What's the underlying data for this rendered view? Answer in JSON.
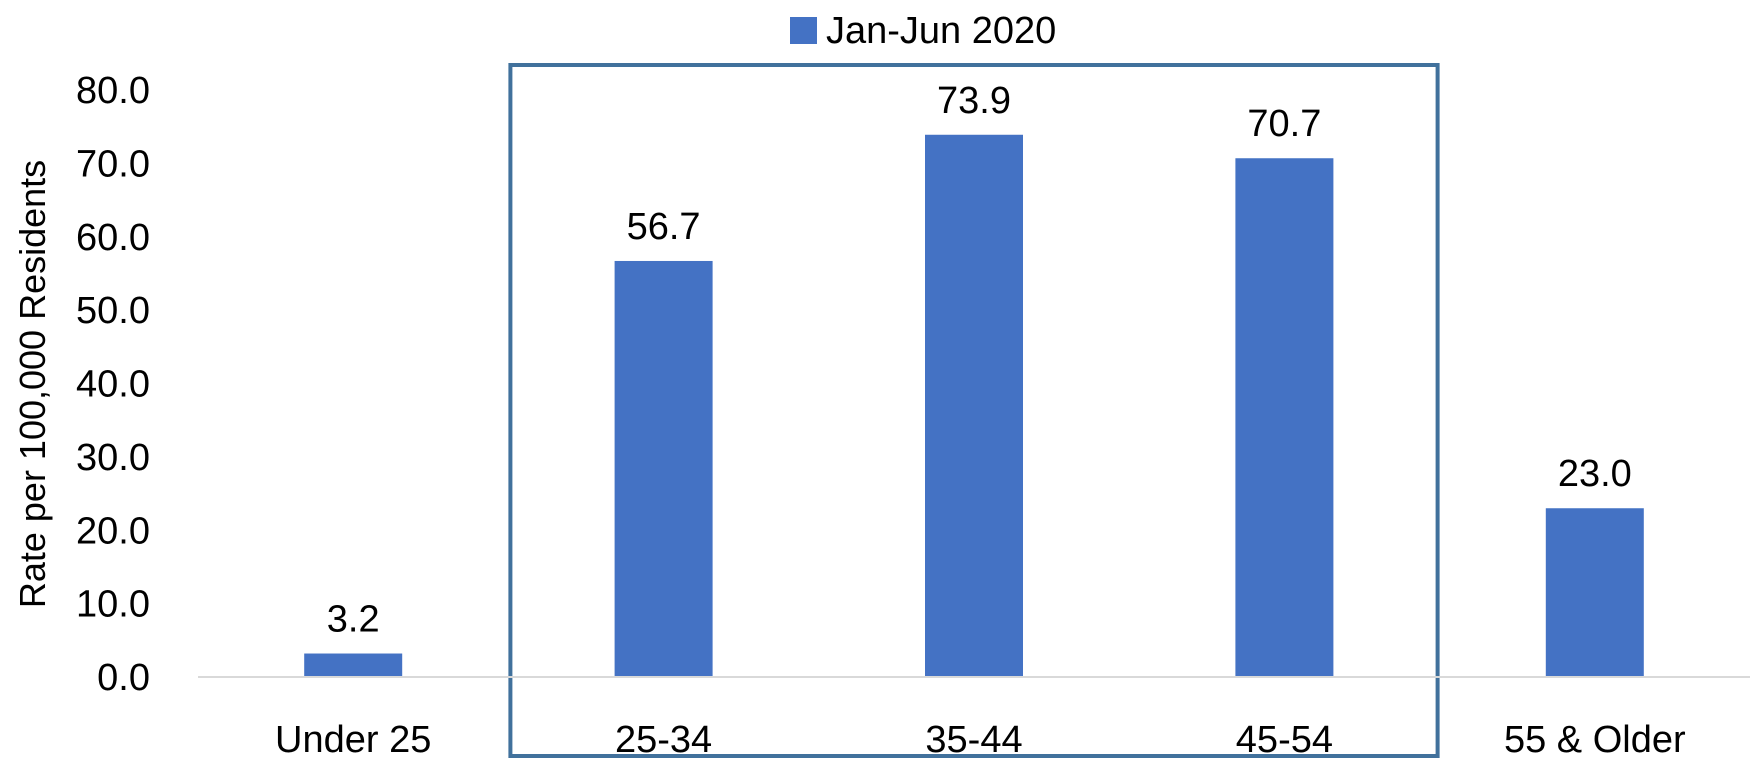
{
  "chart_data": {
    "type": "bar",
    "categories": [
      "Under 25",
      "25-34",
      "35-44",
      "45-54",
      "55 & Older"
    ],
    "series": [
      {
        "name": "Jan-Jun 2020",
        "values": [
          3.2,
          56.7,
          73.9,
          70.7,
          23.0
        ],
        "color": "#4472C4"
      }
    ],
    "value_labels": [
      "3.2",
      "56.7",
      "73.9",
      "70.7",
      "23.0"
    ],
    "ylabel": "Rate per 100,000 Residents",
    "xlabel": "",
    "ylim": [
      0,
      80
    ],
    "yticks": [
      "0.0",
      "10.0",
      "20.0",
      "30.0",
      "40.0",
      "50.0",
      "60.0",
      "70.0",
      "80.0"
    ],
    "legend_position": "top-center",
    "grid": false,
    "highlight": {
      "categories": [
        "25-34",
        "35-44",
        "45-54"
      ],
      "color": "#41719C"
    }
  }
}
